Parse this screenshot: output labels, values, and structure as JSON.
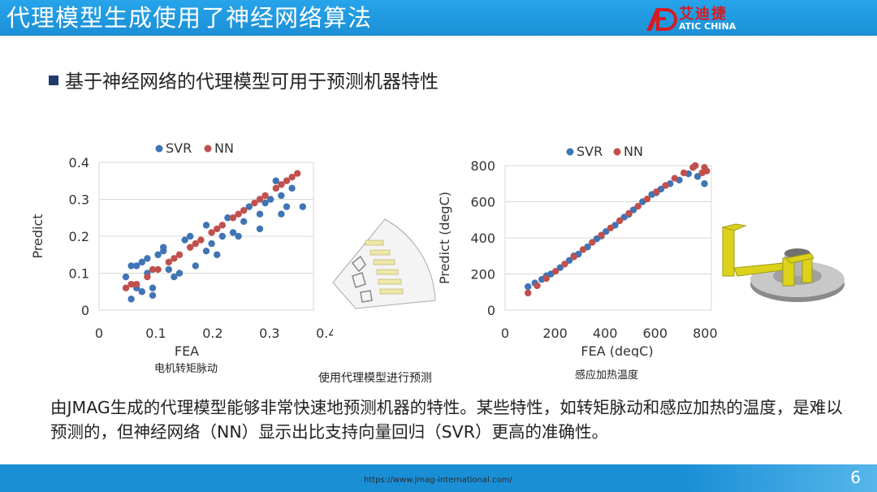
{
  "header": {
    "title": "代理模型生成使用了神经网络算法"
  },
  "logo": {
    "cn": "艾迪捷",
    "en": "ATIC CHINA"
  },
  "bullet": {
    "text": "基于神经网络的代理模型可用于预测机器特性"
  },
  "captions": {
    "left": "电机转矩脉动",
    "middle": "使用代理模型进行预测",
    "right": "感应加热温度"
  },
  "body": {
    "text": "由JMAG生成的代理模型能够非常快速地预测机器的特性。某些特性，如转矩脉动和感应加热的温度，是难以预测的，但神经网络（NN）显示出比支持向量回归（SVR）更高的准确性。"
  },
  "footer": {
    "url": "https://www.jmag-international.com/",
    "page": "6"
  },
  "colors": {
    "svr": "#3f74b5",
    "nn": "#c0504d",
    "header": "#1b8fd6"
  },
  "chart_data": [
    {
      "type": "scatter",
      "xlabel": "FEA",
      "ylabel": "Predict",
      "xlim": [
        0,
        0.4
      ],
      "ylim": [
        0,
        0.4
      ],
      "xticks": [
        "0",
        "0.1",
        "0.2",
        "0.3",
        "0.4"
      ],
      "yticks": [
        "0",
        "0.1",
        "0.2",
        "0.3",
        "0.4"
      ],
      "grid": true,
      "legend_position": "top",
      "series": [
        {
          "name": "SVR",
          "x": [
            0.05,
            0.06,
            0.07,
            0.08,
            0.09,
            0.1,
            0.12,
            0.14,
            0.16,
            0.18,
            0.2,
            0.22,
            0.24,
            0.26,
            0.28,
            0.3,
            0.32,
            0.34,
            0.36,
            0.38,
            0.06,
            0.08,
            0.1,
            0.12,
            0.15,
            0.2,
            0.25,
            0.3,
            0.34,
            0.35,
            0.07,
            0.09,
            0.11,
            0.13,
            0.17,
            0.21,
            0.23,
            0.27,
            0.31,
            0.33
          ],
          "y": [
            0.09,
            0.03,
            0.12,
            0.05,
            0.14,
            0.06,
            0.16,
            0.09,
            0.19,
            0.12,
            0.23,
            0.15,
            0.25,
            0.2,
            0.28,
            0.22,
            0.3,
            0.26,
            0.33,
            0.28,
            0.12,
            0.13,
            0.04,
            0.17,
            0.1,
            0.16,
            0.21,
            0.26,
            0.31,
            0.28,
            0.06,
            0.1,
            0.15,
            0.11,
            0.2,
            0.18,
            0.2,
            0.24,
            0.29,
            0.35
          ]
        },
        {
          "name": "NN",
          "x": [
            0.05,
            0.07,
            0.09,
            0.11,
            0.13,
            0.15,
            0.17,
            0.19,
            0.21,
            0.23,
            0.25,
            0.27,
            0.29,
            0.31,
            0.33,
            0.35,
            0.36,
            0.37,
            0.06,
            0.1,
            0.14,
            0.18,
            0.22,
            0.26,
            0.3,
            0.34
          ],
          "y": [
            0.06,
            0.07,
            0.09,
            0.11,
            0.13,
            0.15,
            0.17,
            0.19,
            0.21,
            0.23,
            0.25,
            0.27,
            0.29,
            0.31,
            0.33,
            0.35,
            0.36,
            0.37,
            0.07,
            0.11,
            0.14,
            0.18,
            0.22,
            0.26,
            0.3,
            0.34
          ]
        }
      ]
    },
    {
      "type": "scatter",
      "xlabel": "FEA (degC)",
      "ylabel": "Predict (degC)",
      "xlim": [
        0,
        900
      ],
      "ylim": [
        0,
        800
      ],
      "xticks": [
        "0",
        "200",
        "400",
        "600",
        "800"
      ],
      "yticks": [
        "0",
        "200",
        "400",
        "600",
        "800"
      ],
      "grid": true,
      "legend_position": "top",
      "series": [
        {
          "name": "SVR",
          "x": [
            100,
            130,
            160,
            200,
            240,
            280,
            320,
            360,
            400,
            440,
            480,
            520,
            560,
            600,
            640,
            680,
            720,
            760,
            800,
            840,
            870,
            180,
            300,
            420,
            540,
            660
          ],
          "y": [
            130,
            150,
            170,
            200,
            235,
            275,
            310,
            350,
            395,
            435,
            470,
            515,
            555,
            600,
            640,
            670,
            700,
            720,
            755,
            740,
            700,
            190,
            300,
            410,
            530,
            650
          ]
        },
        {
          "name": "NN",
          "x": [
            100,
            140,
            180,
            220,
            260,
            300,
            340,
            380,
            420,
            460,
            500,
            540,
            580,
            620,
            660,
            700,
            740,
            780,
            820,
            860,
            870,
            830,
            880
          ],
          "y": [
            95,
            135,
            175,
            215,
            255,
            295,
            335,
            375,
            415,
            455,
            495,
            535,
            575,
            615,
            655,
            690,
            730,
            760,
            790,
            760,
            790,
            800,
            770
          ]
        }
      ]
    }
  ]
}
